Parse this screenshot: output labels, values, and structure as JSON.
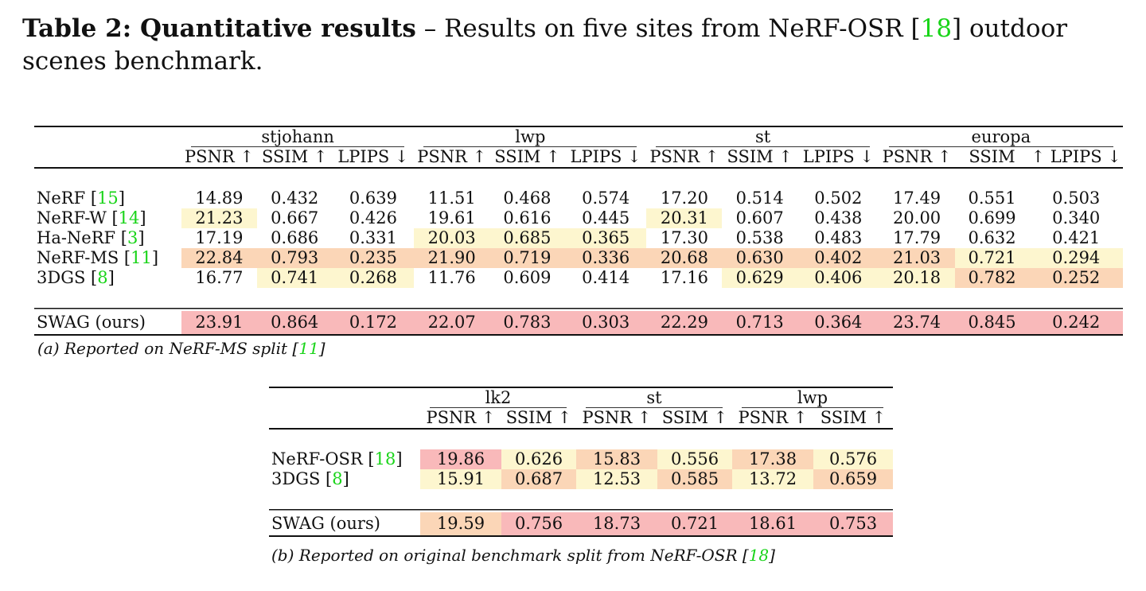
{
  "caption": {
    "label": "Table 2: Quantitative results",
    "dash": " – ",
    "text_before_ref": "Results on five sites from NeRF-OSR [",
    "ref": "18",
    "text_after_ref": "] outdoor scenes benchmark."
  },
  "table_a": {
    "sites": [
      "stjohann",
      "lwp",
      "st",
      "europa"
    ],
    "metrics": [
      "PSNR ↑",
      "SSIM ↑",
      "LPIPS ↓",
      "PSNR ↑",
      "SSIM ↑",
      "LPIPS ↓",
      "PSNR ↑",
      "SSIM ↑",
      "LPIPS ↓",
      "PSNR ↑",
      "SSIM",
      "↑ LPIPS ↓"
    ],
    "rows": [
      {
        "method": "NeRF [",
        "ref": "15",
        "close": "]",
        "values": [
          "14.89",
          "0.432",
          "0.639",
          "11.51",
          "0.468",
          "0.574",
          "17.20",
          "0.514",
          "0.502",
          "17.49",
          "0.551",
          "0.503"
        ],
        "colors": [
          "",
          "",
          "",
          "",
          "",
          "",
          "",
          "",
          "",
          "",
          "",
          ""
        ]
      },
      {
        "method": "NeRF-W [",
        "ref": "14",
        "close": "]",
        "values": [
          "21.23",
          "0.667",
          "0.426",
          "19.61",
          "0.616",
          "0.445",
          "20.31",
          "0.607",
          "0.438",
          "20.00",
          "0.699",
          "0.340"
        ],
        "colors": [
          "#fdf6cf",
          "",
          "",
          "",
          "",
          "",
          "#fdf6cf",
          "",
          "",
          "",
          "",
          ""
        ]
      },
      {
        "method": "Ha-NeRF [",
        "ref": "3",
        "close": "]",
        "values": [
          "17.19",
          "0.686",
          "0.331",
          "20.03",
          "0.685",
          "0.365",
          "17.30",
          "0.538",
          "0.483",
          "17.79",
          "0.632",
          "0.421"
        ],
        "colors": [
          "",
          "",
          "",
          "#fdf6cf",
          "#fdf6cf",
          "#fdf6cf",
          "",
          "",
          "",
          "",
          "",
          ""
        ]
      },
      {
        "method": "NeRF-MS [",
        "ref": "11",
        "close": "]",
        "values": [
          "22.84",
          "0.793",
          "0.235",
          "21.90",
          "0.719",
          "0.336",
          "20.68",
          "0.630",
          "0.402",
          "21.03",
          "0.721",
          "0.294"
        ],
        "colors": [
          "#fbd6b7",
          "#fbd6b7",
          "#fbd6b7",
          "#fbd6b7",
          "#fbd6b7",
          "#fbd6b7",
          "#fbd6b7",
          "#fbd6b7",
          "#fbd6b7",
          "#fbd6b7",
          "#fdf6cf",
          "#fdf6cf"
        ]
      },
      {
        "method": "3DGS [",
        "ref": "8",
        "close": "]",
        "values": [
          "16.77",
          "0.741",
          "0.268",
          "11.76",
          "0.609",
          "0.414",
          "17.16",
          "0.629",
          "0.406",
          "20.18",
          "0.782",
          "0.252"
        ],
        "colors": [
          "",
          "#fdf6cf",
          "#fdf6cf",
          "",
          "",
          "",
          "",
          "#fdf6cf",
          "#fdf6cf",
          "#fdf6cf",
          "#fbd6b7",
          "#fbd6b7"
        ]
      }
    ],
    "ours": {
      "method": "SWAG (ours)",
      "values": [
        "23.91",
        "0.864",
        "0.172",
        "22.07",
        "0.783",
        "0.303",
        "22.29",
        "0.713",
        "0.364",
        "23.74",
        "0.845",
        "0.242"
      ],
      "colors": [
        "#f9b9ba",
        "#f9b9ba",
        "#f9b9ba",
        "#f9b9ba",
        "#f9b9ba",
        "#f9b9ba",
        "#f9b9ba",
        "#f9b9ba",
        "#f9b9ba",
        "#f9b9ba",
        "#f9b9ba",
        "#f9b9ba"
      ]
    },
    "subcaption": {
      "text": "(a) Reported on NeRF-MS split [",
      "ref": "11",
      "close": "]"
    }
  },
  "table_b": {
    "sites": [
      "lk2",
      "st",
      "lwp"
    ],
    "metrics": [
      "PSNR ↑",
      "SSIM ↑",
      "PSNR ↑",
      "SSIM ↑",
      "PSNR ↑",
      "SSIM ↑"
    ],
    "rows": [
      {
        "method": "NeRF-OSR [",
        "ref": "18",
        "close": "]",
        "values": [
          "19.86",
          "0.626",
          "15.83",
          "0.556",
          "17.38",
          "0.576"
        ],
        "colors": [
          "#f9b9ba",
          "#fdf6cf",
          "#fbd6b7",
          "#fdf6cf",
          "#fbd6b7",
          "#fdf6cf"
        ]
      },
      {
        "method": "3DGS [",
        "ref": "8",
        "close": "]",
        "values": [
          "15.91",
          "0.687",
          "12.53",
          "0.585",
          "13.72",
          "0.659"
        ],
        "colors": [
          "#fdf6cf",
          "#fbd6b7",
          "#fdf6cf",
          "#fbd6b7",
          "#fdf6cf",
          "#fbd6b7"
        ]
      }
    ],
    "ours": {
      "method": "SWAG (ours)",
      "values": [
        "19.59",
        "0.756",
        "18.73",
        "0.721",
        "18.61",
        "0.753"
      ],
      "colors": [
        "#fbd6b7",
        "#f9b9ba",
        "#f9b9ba",
        "#f9b9ba",
        "#f9b9ba",
        "#f9b9ba"
      ]
    },
    "subcaption": {
      "text": "(b) Reported on original benchmark split from NeRF-OSR [",
      "ref": "18",
      "close": "]"
    }
  }
}
